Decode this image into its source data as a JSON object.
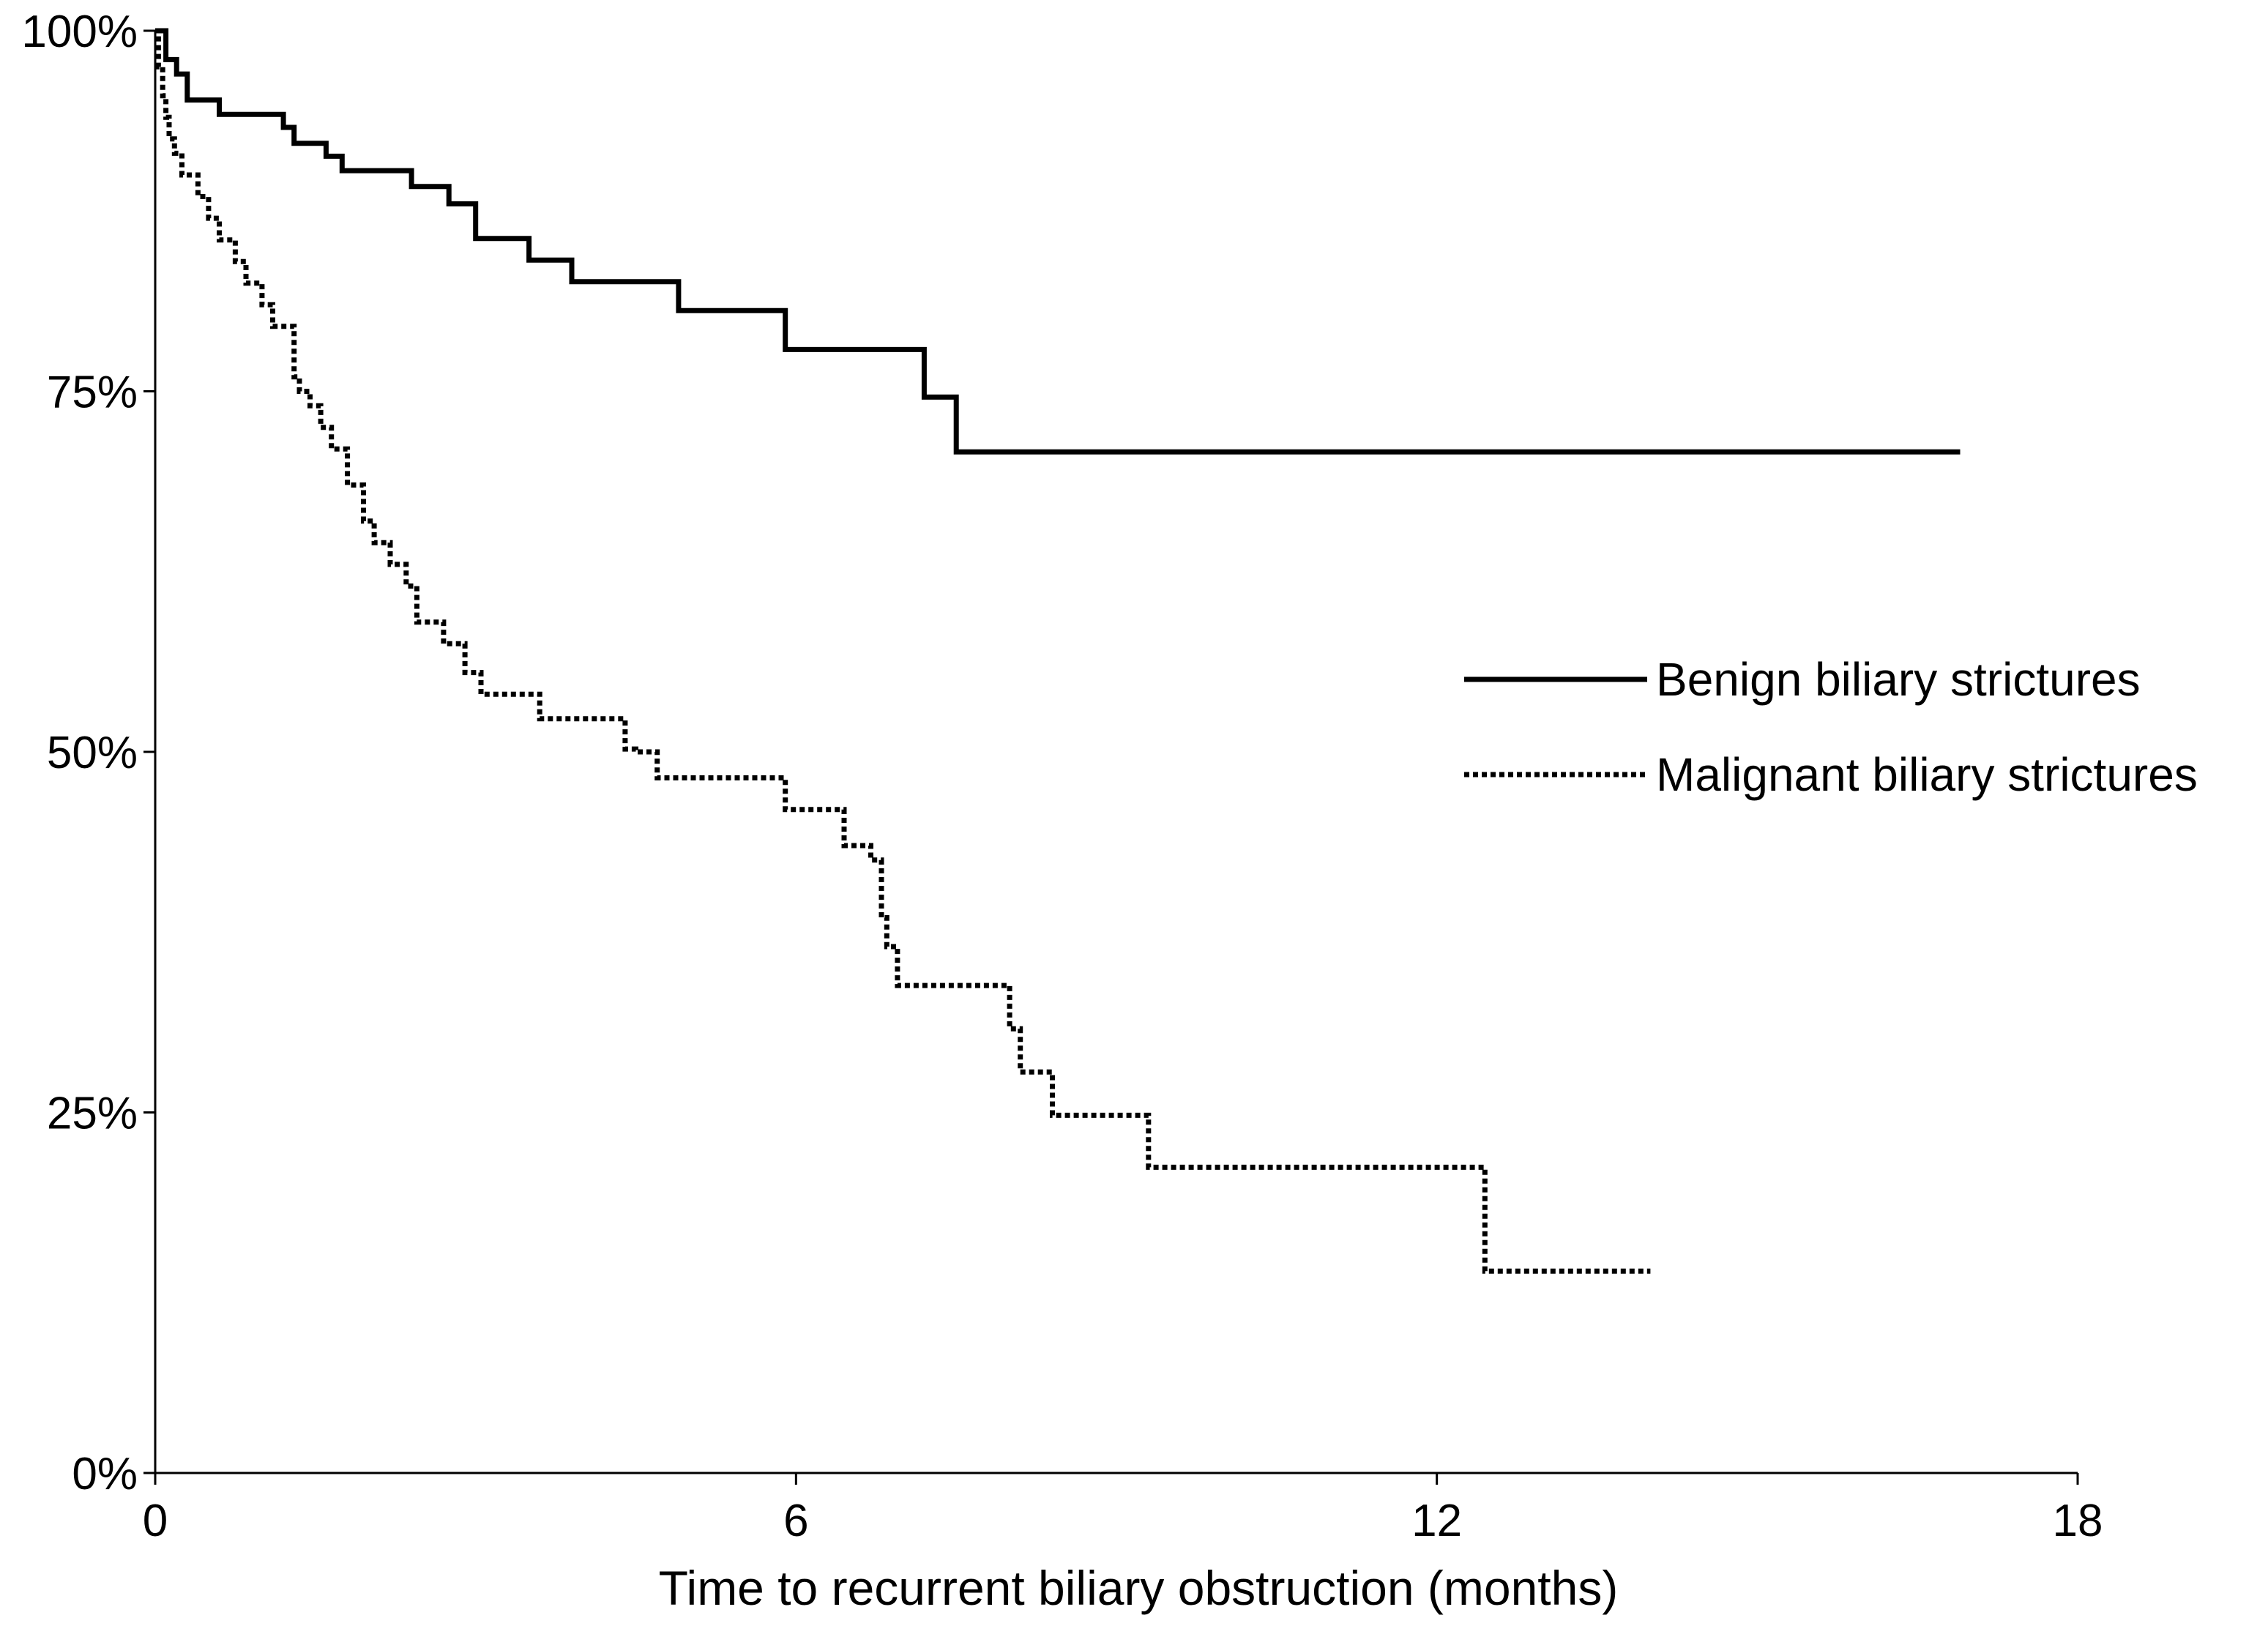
{
  "chart_data": {
    "type": "line",
    "subtype": "kaplan-meier step curve",
    "title": "",
    "xlabel": "Time to recurrent biliary obstruction (months)",
    "ylabel": "",
    "xlim": [
      0,
      18
    ],
    "ylim": [
      0,
      100
    ],
    "x_ticks": [
      0,
      6,
      12,
      18
    ],
    "x_tick_labels": [
      "0",
      "6",
      "12",
      "18"
    ],
    "y_ticks": [
      0,
      25,
      50,
      75,
      100
    ],
    "y_tick_labels": [
      "0%",
      "25%",
      "50%",
      "75%",
      "100%"
    ],
    "grid": false,
    "legend_position": "center-right",
    "series": [
      {
        "name": "Benign biliary strictures",
        "style": "solid",
        "color": "#000000",
        "x": [
          0,
          0.1,
          0.2,
          0.3,
          0.6,
          1.2,
          1.3,
          1.6,
          1.75,
          2.4,
          2.75,
          3.0,
          3.5,
          3.9,
          4.9,
          5.9,
          7.2,
          7.5,
          16.9
        ],
        "y": [
          100,
          98.0,
          97.0,
          95.2,
          94.2,
          93.3,
          92.2,
          91.3,
          90.3,
          89.2,
          88.0,
          85.6,
          84.1,
          82.6,
          80.6,
          77.9,
          74.6,
          70.8,
          70.8
        ]
      },
      {
        "name": "Malignant biliary strictures",
        "style": "dotted",
        "color": "#000000",
        "x": [
          0,
          0.03,
          0.07,
          0.1,
          0.13,
          0.18,
          0.25,
          0.4,
          0.5,
          0.6,
          0.75,
          0.85,
          1.0,
          1.1,
          1.3,
          1.35,
          1.45,
          1.55,
          1.65,
          1.8,
          1.95,
          2.05,
          2.2,
          2.35,
          2.45,
          2.7,
          2.9,
          3.05,
          3.6,
          4.4,
          4.5,
          4.7,
          5.9,
          6.45,
          6.7,
          6.8,
          6.85,
          6.95,
          8.0,
          8.1,
          8.4,
          9.3,
          12.45,
          14.0
        ],
        "y": [
          100,
          97.5,
          95.5,
          94.0,
          92.5,
          91.5,
          90.0,
          88.5,
          87.0,
          85.5,
          84.0,
          82.5,
          81.0,
          79.5,
          76.0,
          75.0,
          74.0,
          72.5,
          71.0,
          68.5,
          66.0,
          64.5,
          63.0,
          61.5,
          59.0,
          57.5,
          55.5,
          54.0,
          52.3,
          50.2,
          50.0,
          48.2,
          46.0,
          43.5,
          42.5,
          38.5,
          36.5,
          33.8,
          30.8,
          27.8,
          24.8,
          21.2,
          14.0,
          14.0
        ]
      }
    ]
  }
}
